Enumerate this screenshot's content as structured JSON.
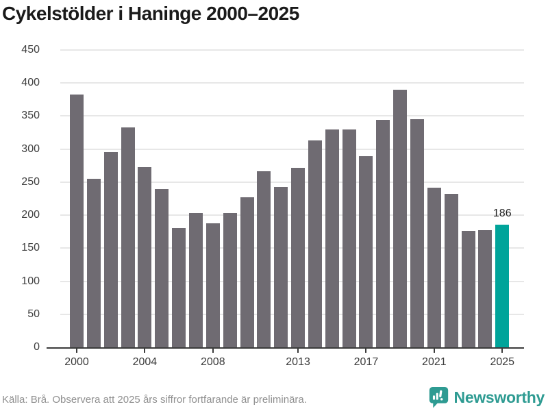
{
  "title": "Cykelstölder i Haninge 2000–2025",
  "chart_data": {
    "type": "bar",
    "title": "Cykelstölder i Haninge 2000–2025",
    "categories": [
      "2000",
      "2001",
      "2002",
      "2003",
      "2004",
      "2005",
      "2006",
      "2007",
      "2008",
      "2009",
      "2010",
      "2011",
      "2012",
      "2013",
      "2014",
      "2015",
      "2016",
      "2017",
      "2018",
      "2019",
      "2020",
      "2021",
      "2022",
      "2023",
      "2024",
      "2025"
    ],
    "values": [
      383,
      255,
      295,
      333,
      273,
      239,
      180,
      203,
      188,
      203,
      227,
      266,
      243,
      272,
      313,
      330,
      330,
      289,
      344,
      390,
      345,
      242,
      232,
      176,
      177,
      186
    ],
    "xlabel": "",
    "ylabel": "",
    "ylim": [
      0,
      450
    ],
    "y_ticks": [
      0,
      50,
      100,
      150,
      200,
      250,
      300,
      350,
      400,
      450
    ],
    "x_tick_labels": [
      "2000",
      "2004",
      "2008",
      "2013",
      "2017",
      "2021",
      "2025"
    ],
    "grid": true,
    "legend": "none",
    "highlight_category": "2025",
    "value_labels": [
      {
        "category": "2025",
        "text": "186"
      }
    ],
    "bar_color": "#6f6b72",
    "highlight_color": "#00a49a"
  },
  "footer": {
    "source": "Källa: Brå. Observera att 2025 års siffror fortfarande är preliminära.",
    "brand": "Newsworthy"
  },
  "colors": {
    "title": "#1a1a1a",
    "axis": "#3b3b3b",
    "gridline": "#e7e7e7",
    "tick_label": "#3c3c3c",
    "source_text": "#8f8f8f",
    "brand_teal": "#2e9b92"
  }
}
